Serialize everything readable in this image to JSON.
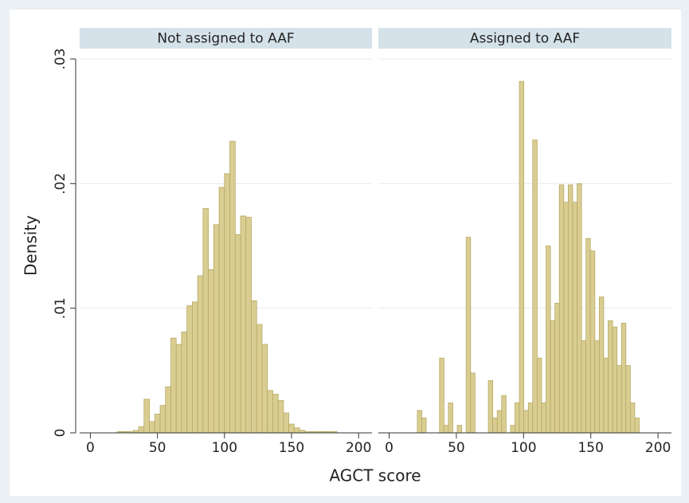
{
  "chart_data": [
    {
      "type": "histogram",
      "title": "Not assigned to AAF",
      "ylabel": "Density",
      "xlabel": "AGCT score",
      "color": "#d9cd92",
      "edge_color": "#b7a962",
      "grid": true,
      "bins": [
        20,
        24,
        28,
        32,
        36,
        40,
        44,
        48,
        52,
        56,
        60,
        64,
        68,
        72,
        76,
        80,
        84,
        88,
        92,
        96,
        100,
        104,
        108,
        112,
        116,
        120,
        124,
        128,
        132,
        136,
        140,
        144,
        148,
        152,
        156,
        160,
        164,
        168,
        172,
        176,
        180,
        184
      ],
      "values": [
        0.0001,
        0.0001,
        0.0001,
        0.0002,
        0.0005,
        0.0027,
        0.0009,
        0.0015,
        0.0022,
        0.0037,
        0.0076,
        0.0071,
        0.0081,
        0.0102,
        0.0105,
        0.0126,
        0.018,
        0.0131,
        0.0167,
        0.0197,
        0.0208,
        0.0234,
        0.0159,
        0.0174,
        0.0173,
        0.0106,
        0.0087,
        0.0071,
        0.0034,
        0.0031,
        0.0026,
        0.0016,
        0.0007,
        0.0004,
        0.0002,
        0.0001,
        0.0001,
        0.0001,
        0.0001,
        0.0001,
        0.0001
      ],
      "xlim": [
        -8,
        210
      ],
      "xticks": [
        0,
        50,
        100,
        150,
        200
      ],
      "ylim": [
        0,
        0.03
      ],
      "yticks": [
        0,
        {
          "value": 0.01,
          "label": ".01"
        },
        {
          "value": 0.02,
          "label": ".02"
        },
        {
          "value": 0.03,
          "label": ".03"
        }
      ]
    },
    {
      "type": "histogram",
      "title": "Assigned to AAF",
      "color": "#d9cd92",
      "edge_color": "#b7a962",
      "grid": true,
      "bins": [
        21,
        24.3,
        27.6,
        30.9,
        34.2,
        37.5,
        40.8,
        44.1,
        47.4,
        50.7,
        54,
        57.3,
        60.6,
        63.9,
        67.2,
        70.5,
        73.8,
        77.1,
        80.4,
        83.7,
        87,
        90.3,
        93.6,
        96.9,
        100.2,
        103.5,
        106.8,
        110.1,
        113.4,
        116.7,
        120,
        123.3,
        126.6,
        129.9,
        133.2,
        136.5,
        139.8,
        143.1,
        146.4,
        149.7,
        153,
        156.3,
        159.6,
        162.9,
        166.2,
        169.5,
        172.8,
        176.1,
        179.4,
        182.7,
        186
      ],
      "values": [
        0.0018,
        0.0012,
        0,
        0,
        0,
        0.006,
        0.0006,
        0.0024,
        0,
        0.0006,
        0,
        0.0157,
        0.0048,
        0,
        0,
        0,
        0.0042,
        0.0012,
        0.0018,
        0.003,
        0,
        0.0006,
        0.0024,
        0.0282,
        0.0018,
        0.0024,
        0.0235,
        0.006,
        0.0024,
        0.015,
        0.009,
        0.0104,
        0.0199,
        0.0185,
        0.0199,
        0.0185,
        0.02,
        0.0074,
        0.0156,
        0.0146,
        0.0074,
        0.0109,
        0.006,
        0.009,
        0.0085,
        0.0054,
        0.0088,
        0.0054,
        0.0024,
        0.0012
      ],
      "xlim": [
        -8,
        210
      ],
      "xticks": [
        0,
        50,
        100,
        150,
        200
      ],
      "ylim": [
        0,
        0.03
      ],
      "yticks": [
        0,
        {
          "value": 0.01,
          "label": ".01"
        },
        {
          "value": 0.02,
          "label": ".02"
        },
        {
          "value": 0.03,
          "label": ".03"
        }
      ]
    }
  ]
}
